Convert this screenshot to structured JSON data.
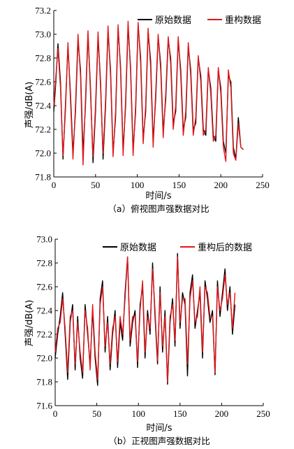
{
  "chart_data": [
    {
      "type": "line",
      "caption": "（a）俯视图声强数据对比",
      "xlabel": "时间/s",
      "ylabel": "声强/dB(A)",
      "xlim": [
        0,
        250
      ],
      "ylim": [
        71.8,
        73.2
      ],
      "xticks": [
        "0",
        "50",
        "100",
        "150",
        "200",
        "250"
      ],
      "yticks": [
        "71.8",
        "72.0",
        "72.2",
        "72.4",
        "72.6",
        "72.8",
        "73.0",
        "73.2"
      ],
      "legend_position": "top-right",
      "series": [
        {
          "name": "原始数据",
          "color": "#000000",
          "x": [
            0,
            2,
            5,
            8,
            11,
            14,
            17,
            20,
            23,
            26,
            29,
            32,
            35,
            38,
            41,
            44,
            47,
            50,
            53,
            56,
            59,
            62,
            65,
            68,
            71,
            74,
            77,
            80,
            83,
            86,
            89,
            92,
            95,
            98,
            101,
            104,
            107,
            110,
            113,
            116,
            119,
            122,
            125,
            128,
            131,
            134,
            137,
            140,
            143,
            146,
            149,
            152,
            155,
            158,
            161,
            164,
            167,
            170,
            173,
            176,
            179,
            182,
            185,
            188,
            191,
            194,
            197,
            200,
            203,
            206,
            209,
            212,
            215,
            218,
            221,
            224,
            227
          ],
          "y": [
            72.35,
            72.55,
            72.92,
            72.6,
            71.95,
            72.4,
            72.9,
            72.5,
            72.0,
            72.35,
            72.95,
            72.7,
            72.0,
            72.4,
            73.0,
            72.55,
            71.92,
            72.35,
            72.98,
            72.6,
            71.95,
            72.4,
            73.03,
            72.7,
            72.0,
            72.3,
            73.05,
            72.72,
            72.02,
            72.4,
            73.07,
            72.72,
            72.02,
            72.35,
            73.08,
            72.8,
            72.12,
            72.35,
            73.02,
            72.78,
            72.1,
            72.45,
            72.98,
            72.75,
            72.18,
            72.45,
            72.95,
            72.8,
            72.25,
            72.35,
            72.95,
            72.7,
            72.2,
            72.3,
            72.9,
            72.7,
            72.2,
            72.25,
            72.8,
            72.65,
            72.2,
            72.15,
            72.7,
            72.55,
            72.15,
            72.1,
            72.7,
            72.55,
            72.1,
            72.0,
            72.65,
            72.6,
            72.05,
            71.95,
            72.3,
            72.05,
            72.03
          ]
        },
        {
          "name": "重构数据",
          "color": "#e0171b",
          "x": [
            0,
            2,
            5,
            8,
            11,
            14,
            17,
            20,
            23,
            26,
            29,
            32,
            35,
            38,
            41,
            44,
            47,
            50,
            53,
            56,
            59,
            62,
            65,
            68,
            71,
            74,
            77,
            80,
            83,
            86,
            89,
            92,
            95,
            98,
            101,
            104,
            107,
            110,
            113,
            116,
            119,
            122,
            125,
            128,
            131,
            134,
            137,
            140,
            143,
            146,
            149,
            152,
            155,
            158,
            161,
            164,
            167,
            170,
            173,
            176,
            179,
            182,
            185,
            188,
            191,
            194,
            197,
            200,
            203,
            206,
            209,
            212,
            215,
            218,
            221,
            224,
            227
          ],
          "y": [
            72.4,
            72.6,
            72.88,
            72.55,
            71.98,
            72.35,
            72.93,
            72.45,
            71.95,
            72.4,
            73.0,
            72.65,
            71.9,
            72.45,
            73.03,
            72.5,
            71.97,
            72.4,
            73.02,
            72.55,
            72.0,
            72.45,
            73.07,
            72.65,
            71.97,
            72.35,
            73.08,
            72.68,
            71.98,
            72.45,
            73.11,
            72.68,
            71.98,
            72.4,
            73.1,
            72.75,
            72.08,
            72.4,
            73.05,
            72.72,
            72.05,
            72.5,
            73.0,
            72.7,
            72.13,
            72.5,
            72.98,
            72.75,
            72.2,
            72.4,
            72.98,
            72.65,
            72.15,
            72.35,
            72.93,
            72.65,
            72.15,
            72.3,
            72.82,
            72.6,
            72.15,
            72.2,
            72.72,
            72.5,
            72.1,
            72.15,
            72.72,
            72.5,
            72.05,
            71.93,
            72.7,
            72.55,
            72.0,
            71.94,
            72.25,
            72.05,
            72.03
          ]
        }
      ]
    },
    {
      "type": "line",
      "caption": "（b）正视图声强数据对比",
      "xlabel": "时间/s",
      "ylabel": "声强/dB(A)",
      "xlim": [
        0,
        250
      ],
      "ylim": [
        71.6,
        73.0
      ],
      "xticks": [
        "0",
        "50",
        "100",
        "150",
        "200",
        "250"
      ],
      "yticks": [
        "71.6",
        "71.8",
        "72.0",
        "72.2",
        "72.4",
        "72.6",
        "72.8",
        "73.0"
      ],
      "legend_position": "top-right",
      "series": [
        {
          "name": "原始数据",
          "color": "#000000",
          "x": [
            0,
            3,
            6,
            9,
            12,
            15,
            18,
            21,
            24,
            27,
            30,
            33,
            36,
            39,
            42,
            45,
            48,
            51,
            54,
            57,
            60,
            63,
            66,
            69,
            72,
            75,
            78,
            81,
            84,
            87,
            90,
            93,
            96,
            99,
            102,
            105,
            108,
            111,
            114,
            117,
            120,
            123,
            126,
            129,
            132,
            135,
            138,
            141,
            144,
            147,
            150,
            153,
            156,
            159,
            162,
            165,
            168,
            171,
            174,
            177,
            180,
            183,
            186,
            189,
            192,
            195,
            198,
            201,
            204,
            207,
            210,
            213,
            216
          ],
          "y": [
            72.0,
            72.2,
            72.35,
            72.55,
            72.2,
            71.82,
            72.3,
            72.45,
            71.9,
            72.35,
            72.0,
            71.83,
            72.45,
            72.2,
            71.95,
            72.4,
            72.0,
            71.77,
            72.5,
            72.65,
            72.05,
            72.35,
            71.9,
            72.2,
            72.4,
            71.92,
            72.3,
            72.15,
            72.55,
            72.85,
            72.1,
            72.3,
            72.4,
            71.92,
            72.45,
            72.6,
            72.0,
            72.4,
            72.2,
            72.8,
            72.35,
            71.95,
            72.6,
            72.05,
            72.4,
            71.78,
            72.3,
            72.5,
            72.1,
            72.88,
            72.25,
            72.55,
            72.45,
            71.85,
            72.55,
            72.7,
            72.25,
            72.4,
            72.55,
            72.0,
            72.65,
            72.5,
            72.3,
            72.4,
            71.86,
            72.65,
            72.35,
            72.55,
            72.75,
            72.4,
            72.6,
            72.2,
            72.45
          ]
        },
        {
          "name": "重构后的数据",
          "color": "#e0171b",
          "x": [
            0,
            3,
            6,
            9,
            12,
            15,
            18,
            21,
            24,
            27,
            30,
            33,
            36,
            39,
            42,
            45,
            48,
            51,
            54,
            57,
            60,
            63,
            66,
            69,
            72,
            75,
            78,
            81,
            84,
            87,
            90,
            93,
            96,
            99,
            102,
            105,
            108,
            111,
            114,
            117,
            120,
            123,
            126,
            129,
            132,
            135,
            138,
            141,
            144,
            147,
            150,
            153,
            156,
            159,
            162,
            165,
            168,
            171,
            174,
            177,
            180,
            183,
            186,
            189,
            192,
            195,
            198,
            201,
            204,
            207,
            210,
            213,
            216
          ],
          "y": [
            72.05,
            72.25,
            72.3,
            72.5,
            72.25,
            71.88,
            72.35,
            72.4,
            71.95,
            72.3,
            72.05,
            71.88,
            72.4,
            72.25,
            71.9,
            72.45,
            72.05,
            71.82,
            72.45,
            72.6,
            72.1,
            72.3,
            71.95,
            72.25,
            72.35,
            71.97,
            72.35,
            72.2,
            72.5,
            72.85,
            72.15,
            72.35,
            72.35,
            71.97,
            72.4,
            72.65,
            72.05,
            72.35,
            72.25,
            72.75,
            72.4,
            71.98,
            72.55,
            72.1,
            72.35,
            71.8,
            72.35,
            72.45,
            72.15,
            72.85,
            72.3,
            72.5,
            72.5,
            71.95,
            72.5,
            72.65,
            72.3,
            72.35,
            72.6,
            72.05,
            72.6,
            72.55,
            72.35,
            72.35,
            71.88,
            72.6,
            72.4,
            72.5,
            72.7,
            72.45,
            72.55,
            72.25,
            72.55
          ]
        }
      ]
    }
  ]
}
